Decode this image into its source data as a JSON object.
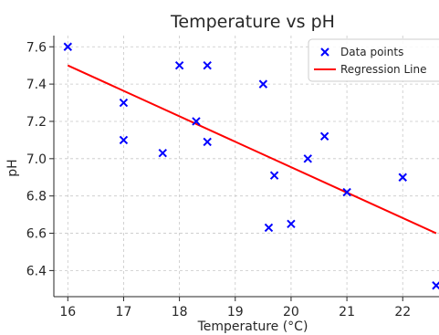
{
  "chart_data": {
    "type": "scatter",
    "title": "Temperature vs pH",
    "xlabel": "Temperature (°C)",
    "ylabel": "pH",
    "xlim": [
      15.75,
      22.65
    ],
    "ylim": [
      6.26,
      7.66
    ],
    "xticks": [
      16,
      17,
      18,
      19,
      20,
      21,
      22
    ],
    "yticks": [
      6.4,
      6.6,
      6.8,
      7.0,
      7.2,
      7.4,
      7.6
    ],
    "xtick_labels": [
      "16",
      "17",
      "18",
      "19",
      "20",
      "21",
      "22"
    ],
    "ytick_labels": [
      "6.4",
      "6.6",
      "6.8",
      "7.0",
      "7.2",
      "7.4",
      "7.6"
    ],
    "grid": true,
    "legend_position": "top-right",
    "series": [
      {
        "name": "Data points",
        "kind": "scatter",
        "marker": "x",
        "color": "#0000ff",
        "points": [
          {
            "x": 16.0,
            "y": 7.6
          },
          {
            "x": 17.0,
            "y": 7.3
          },
          {
            "x": 17.0,
            "y": 7.1
          },
          {
            "x": 17.7,
            "y": 7.03
          },
          {
            "x": 18.0,
            "y": 7.5
          },
          {
            "x": 18.3,
            "y": 7.2
          },
          {
            "x": 18.5,
            "y": 7.5
          },
          {
            "x": 18.5,
            "y": 7.09
          },
          {
            "x": 19.5,
            "y": 7.4
          },
          {
            "x": 19.6,
            "y": 6.63
          },
          {
            "x": 19.7,
            "y": 6.91
          },
          {
            "x": 20.0,
            "y": 6.65
          },
          {
            "x": 20.3,
            "y": 7.0
          },
          {
            "x": 20.6,
            "y": 7.12
          },
          {
            "x": 21.0,
            "y": 6.82
          },
          {
            "x": 22.0,
            "y": 6.9
          },
          {
            "x": 22.6,
            "y": 6.32
          }
        ]
      },
      {
        "name": "Regression Line",
        "kind": "line",
        "color": "#ff0000",
        "points": [
          {
            "x": 16.0,
            "y": 7.5
          },
          {
            "x": 22.6,
            "y": 6.6
          }
        ]
      }
    ]
  }
}
